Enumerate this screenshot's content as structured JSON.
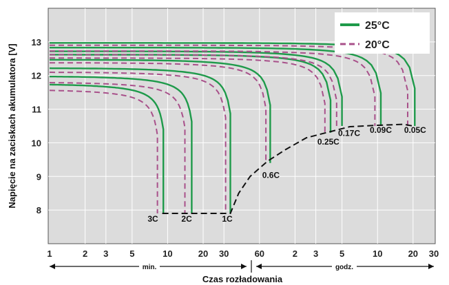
{
  "chart_data": {
    "type": "line",
    "xlabel": "Czas rozładowania",
    "ylabel": "Napięcie na zaciskach akumulatora [V]",
    "x_unit": "min",
    "x_scale": "log",
    "xlim_min": [
      1,
      1800
    ],
    "ylim": [
      7,
      14
    ],
    "grid": true,
    "legend_position": "top-right",
    "y_ticks": [
      "8",
      "9",
      "10",
      "11",
      "12",
      "13"
    ],
    "x_ticks": [
      {
        "min": 1,
        "label": "1"
      },
      {
        "min": 2,
        "label": "2"
      },
      {
        "min": 3,
        "label": "3"
      },
      {
        "min": 5,
        "label": "5"
      },
      {
        "min": 10,
        "label": "10"
      },
      {
        "min": 20,
        "label": "20"
      },
      {
        "min": 30,
        "label": "30"
      },
      {
        "min": 60,
        "label": "60"
      },
      {
        "min": 120,
        "label": "2"
      },
      {
        "min": 180,
        "label": "3"
      },
      {
        "min": 300,
        "label": "5"
      },
      {
        "min": 600,
        "label": "10"
      },
      {
        "min": 1200,
        "label": "20"
      },
      {
        "min": 1800,
        "label": "30"
      }
    ],
    "range_labels": {
      "minutes": "min.",
      "hours": "godz."
    },
    "legend": [
      {
        "label": "25°C",
        "color": "#1e9a4a",
        "dash": false
      },
      {
        "label": "20°C",
        "color": "#a8508a",
        "dash": true
      }
    ],
    "series": [
      {
        "rate": "3C",
        "temp": "25°C",
        "v_start": 11.75,
        "t_end_min": 9.2,
        "v_end": 7.9
      },
      {
        "rate": "3C",
        "temp": "20°C",
        "v_start": 11.58,
        "t_end_min": 8.2,
        "v_end": 7.9
      },
      {
        "rate": "2C",
        "temp": "25°C",
        "v_start": 11.98,
        "t_end_min": 16,
        "v_end": 7.9
      },
      {
        "rate": "2C",
        "temp": "20°C",
        "v_start": 11.8,
        "t_end_min": 14,
        "v_end": 7.9
      },
      {
        "rate": "1C",
        "temp": "25°C",
        "v_start": 12.22,
        "t_end_min": 34,
        "v_end": 7.9
      },
      {
        "rate": "1C",
        "temp": "20°C",
        "v_start": 12.1,
        "t_end_min": 31,
        "v_end": 7.9
      },
      {
        "rate": "0.6C",
        "temp": "25°C",
        "v_start": 12.47,
        "t_end_min": 74,
        "v_end": 9.4
      },
      {
        "rate": "0.6C",
        "temp": "20°C",
        "v_start": 12.38,
        "t_end_min": 68,
        "v_end": 9.4
      },
      {
        "rate": "0.25C",
        "temp": "25°C",
        "v_start": 12.62,
        "t_end_min": 240,
        "v_end": 10.3
      },
      {
        "rate": "0.25C",
        "temp": "20°C",
        "v_start": 12.52,
        "t_end_min": 215,
        "v_end": 10.3
      },
      {
        "rate": "0.17C",
        "temp": "25°C",
        "v_start": 12.72,
        "t_end_min": 300,
        "v_end": 10.5
      },
      {
        "rate": "0.17C",
        "temp": "20°C",
        "v_start": 12.62,
        "t_end_min": 270,
        "v_end": 10.5
      },
      {
        "rate": "0.09C",
        "temp": "25°C",
        "v_start": 12.83,
        "t_end_min": 640,
        "v_end": 10.5
      },
      {
        "rate": "0.09C",
        "temp": "20°C",
        "v_start": 12.73,
        "t_end_min": 570,
        "v_end": 10.5
      },
      {
        "rate": "0.05C",
        "temp": "25°C",
        "v_start": 12.97,
        "t_end_min": 1240,
        "v_end": 10.5
      },
      {
        "rate": "0.05C",
        "temp": "20°C",
        "v_start": 12.9,
        "t_end_min": 1080,
        "v_end": 10.5
      }
    ],
    "cutoff_curve": [
      [
        9,
        7.9
      ],
      [
        34,
        7.9
      ],
      [
        40,
        8.5
      ],
      [
        50,
        9.0
      ],
      [
        70,
        9.45
      ],
      [
        100,
        9.8
      ],
      [
        150,
        10.15
      ],
      [
        220,
        10.3
      ],
      [
        350,
        10.48
      ],
      [
        600,
        10.52
      ],
      [
        1000,
        10.55
      ],
      [
        1200,
        10.5
      ]
    ],
    "rate_labels": [
      {
        "text": "3C",
        "t_min": 7.5,
        "v": 7.65
      },
      {
        "text": "2C",
        "t_min": 14.5,
        "v": 7.65
      },
      {
        "text": "1C",
        "t_min": 32,
        "v": 7.65
      },
      {
        "text": "0.6C",
        "t_min": 75,
        "v": 8.95
      },
      {
        "text": "0.25C",
        "t_min": 230,
        "v": 9.95
      },
      {
        "text": "0.17C",
        "t_min": 345,
        "v": 10.2
      },
      {
        "text": "0.09C",
        "t_min": 640,
        "v": 10.3
      },
      {
        "text": "0.05C",
        "t_min": 1250,
        "v": 10.3
      }
    ]
  }
}
